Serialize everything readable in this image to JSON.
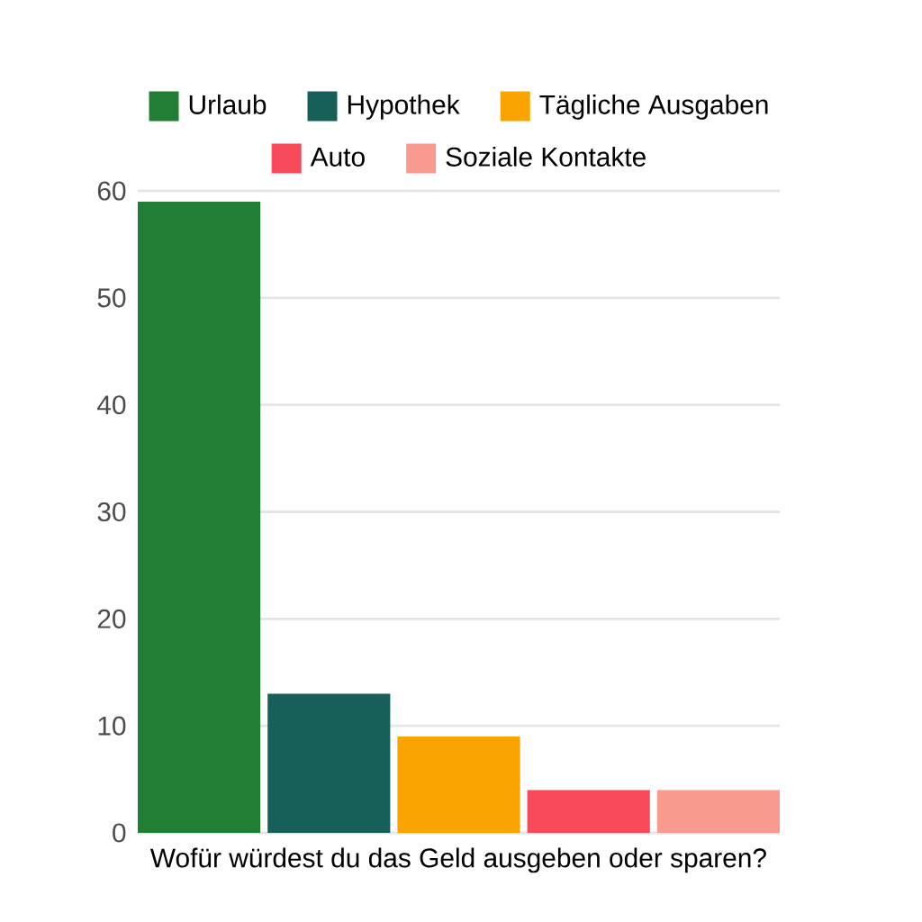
{
  "chart_data": {
    "type": "bar",
    "xlabel": "Wofür würdest du das Geld ausgeben oder sparen?",
    "categories": [
      null
    ],
    "series": [
      {
        "name": "Urlaub",
        "color": "#217f35",
        "values": [
          59
        ]
      },
      {
        "name": "Hypothek",
        "color": "#17605a",
        "values": [
          13
        ]
      },
      {
        "name": "Tägliche Ausgaben",
        "color": "#f9a400",
        "values": [
          9
        ]
      },
      {
        "name": "Auto",
        "color": "#f74a5a",
        "values": [
          4
        ]
      },
      {
        "name": "Soziale Kontakte",
        "color": "#f99a8e",
        "values": [
          4
        ]
      }
    ],
    "ylim": [
      0,
      60
    ],
    "yticks": [
      0,
      10,
      20,
      30,
      40,
      50,
      60
    ],
    "grid": "y",
    "legend": "top"
  }
}
